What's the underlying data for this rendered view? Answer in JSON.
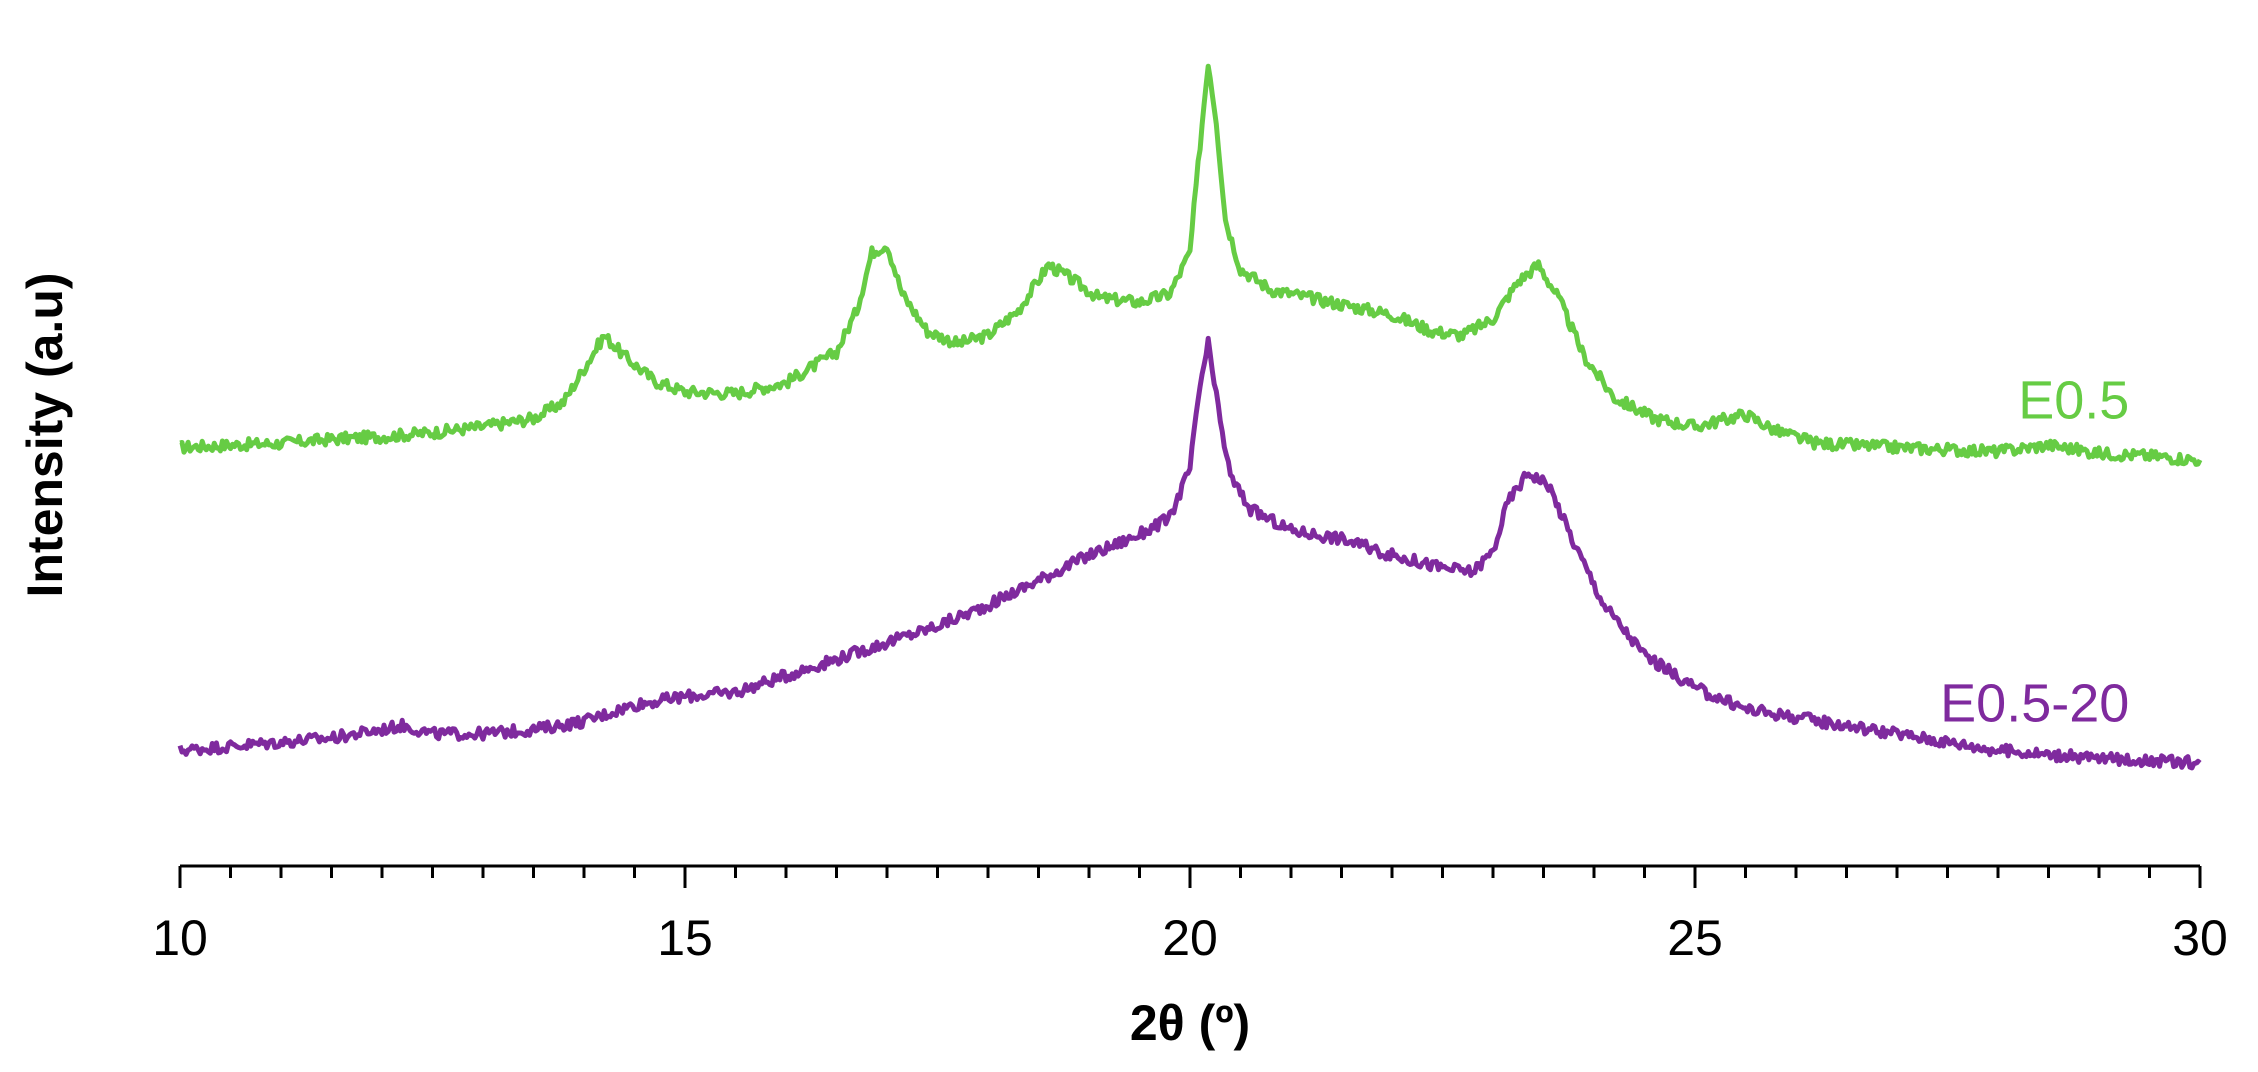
{
  "chart_data": {
    "type": "line",
    "xlabel": "2θ (º)",
    "ylabel": "Intensity (a.u)",
    "xlim": [
      10,
      30
    ],
    "ylim": [
      0,
      100
    ],
    "x_ticks_major": [
      10,
      15,
      20,
      25,
      30
    ],
    "x_ticks_minor_step": 0.5,
    "y_axis_visible": false,
    "grid": false,
    "legend": "inline-right",
    "series": [
      {
        "name": "E0.5",
        "color": "#66cc44",
        "points": [
          [
            10.0,
            48.5
          ],
          [
            10.5,
            48.8
          ],
          [
            11.0,
            49.0
          ],
          [
            11.5,
            49.5
          ],
          [
            12.0,
            49.8
          ],
          [
            12.5,
            50.3
          ],
          [
            13.0,
            51.0
          ],
          [
            13.5,
            52.0
          ],
          [
            13.8,
            54.0
          ],
          [
            14.0,
            58.0
          ],
          [
            14.2,
            62.0
          ],
          [
            14.4,
            59.5
          ],
          [
            14.7,
            56.5
          ],
          [
            15.0,
            55.2
          ],
          [
            15.5,
            55.0
          ],
          [
            16.0,
            56.3
          ],
          [
            16.5,
            60.0
          ],
          [
            16.7,
            65.0
          ],
          [
            16.85,
            72.0
          ],
          [
            17.0,
            73.0
          ],
          [
            17.15,
            67.0
          ],
          [
            17.4,
            62.5
          ],
          [
            17.7,
            61.0
          ],
          [
            18.0,
            62.0
          ],
          [
            18.3,
            65.0
          ],
          [
            18.6,
            70.5
          ],
          [
            18.8,
            69.0
          ],
          [
            19.1,
            66.5
          ],
          [
            19.5,
            66.0
          ],
          [
            19.8,
            67.0
          ],
          [
            20.0,
            72.0
          ],
          [
            20.1,
            85.0
          ],
          [
            20.18,
            95.0
          ],
          [
            20.26,
            88.0
          ],
          [
            20.35,
            76.0
          ],
          [
            20.5,
            70.0
          ],
          [
            20.8,
            67.5
          ],
          [
            21.2,
            66.5
          ],
          [
            21.6,
            65.5
          ],
          [
            22.0,
            64.5
          ],
          [
            22.4,
            62.5
          ],
          [
            22.7,
            62.0
          ],
          [
            23.0,
            64.0
          ],
          [
            23.25,
            68.5
          ],
          [
            23.45,
            70.5
          ],
          [
            23.65,
            66.5
          ],
          [
            23.9,
            59.5
          ],
          [
            24.2,
            54.5
          ],
          [
            24.6,
            52.0
          ],
          [
            25.0,
            51.0
          ],
          [
            25.5,
            52.5
          ],
          [
            25.8,
            50.5
          ],
          [
            26.2,
            49.0
          ],
          [
            27.0,
            48.5
          ],
          [
            28.0,
            48.0
          ],
          [
            28.5,
            48.8
          ],
          [
            29.0,
            47.8
          ],
          [
            29.5,
            47.5
          ],
          [
            30.0,
            47.0
          ]
        ]
      },
      {
        "name": "E0.5-20",
        "color": "#7f2a9e",
        "points": [
          [
            10.0,
            12.0
          ],
          [
            10.5,
            12.5
          ],
          [
            11.0,
            13.0
          ],
          [
            11.5,
            13.5
          ],
          [
            12.0,
            14.5
          ],
          [
            12.2,
            15.0
          ],
          [
            12.5,
            14.0
          ],
          [
            13.0,
            14.0
          ],
          [
            13.5,
            14.5
          ],
          [
            14.0,
            15.5
          ],
          [
            14.5,
            17.5
          ],
          [
            15.0,
            18.5
          ],
          [
            15.5,
            19.0
          ],
          [
            16.0,
            21.0
          ],
          [
            16.5,
            23.0
          ],
          [
            17.0,
            25.0
          ],
          [
            17.5,
            27.0
          ],
          [
            18.0,
            29.5
          ],
          [
            18.5,
            32.5
          ],
          [
            19.0,
            35.5
          ],
          [
            19.5,
            38.0
          ],
          [
            19.8,
            40.0
          ],
          [
            20.0,
            46.0
          ],
          [
            20.1,
            56.0
          ],
          [
            20.18,
            61.0
          ],
          [
            20.28,
            53.0
          ],
          [
            20.4,
            45.0
          ],
          [
            20.6,
            41.0
          ],
          [
            21.0,
            38.5
          ],
          [
            21.5,
            37.5
          ],
          [
            22.0,
            35.5
          ],
          [
            22.5,
            34.0
          ],
          [
            22.8,
            33.5
          ],
          [
            23.0,
            36.0
          ],
          [
            23.15,
            42.0
          ],
          [
            23.35,
            45.5
          ],
          [
            23.55,
            44.0
          ],
          [
            23.8,
            37.0
          ],
          [
            24.1,
            29.5
          ],
          [
            24.5,
            23.5
          ],
          [
            25.0,
            19.5
          ],
          [
            25.5,
            17.0
          ],
          [
            26.0,
            16.0
          ],
          [
            26.5,
            15.0
          ],
          [
            27.0,
            14.0
          ],
          [
            27.5,
            13.0
          ],
          [
            28.0,
            12.0
          ],
          [
            28.5,
            11.5
          ],
          [
            29.0,
            11.0
          ],
          [
            29.5,
            10.8
          ],
          [
            30.0,
            10.5
          ]
        ]
      }
    ]
  }
}
